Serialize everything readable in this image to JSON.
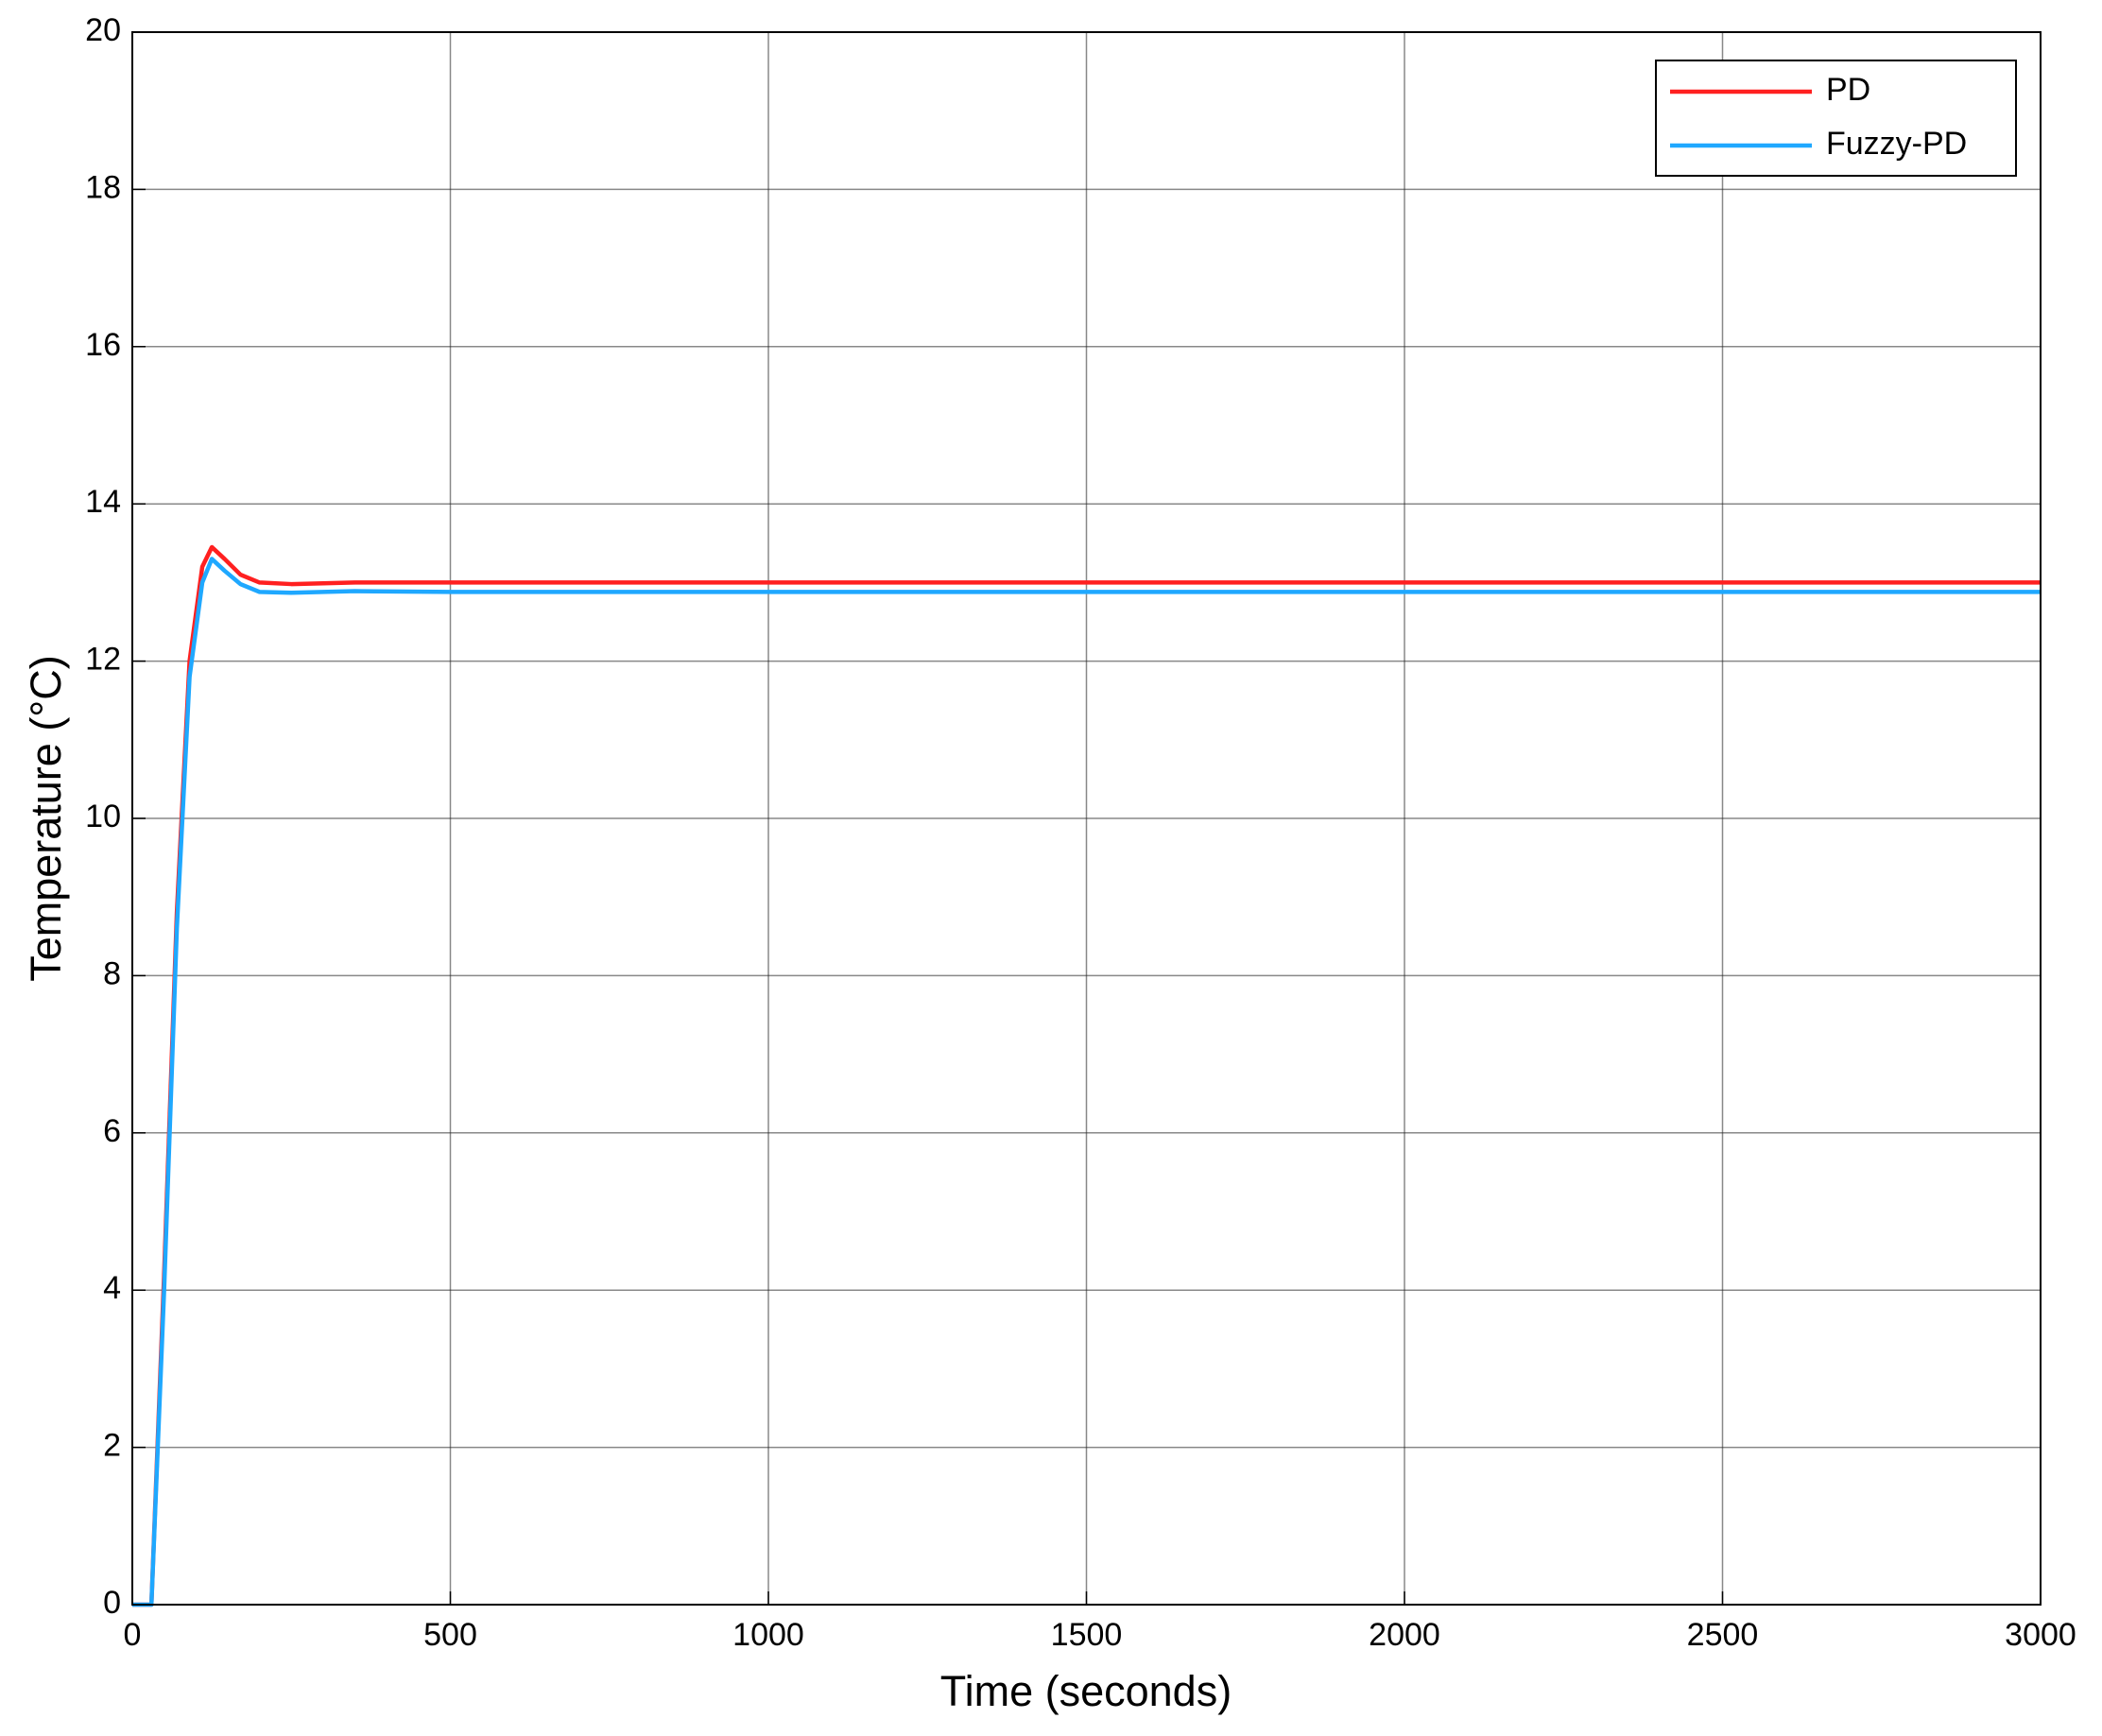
{
  "chart_data": {
    "type": "line",
    "xlabel": "Time (seconds)",
    "ylabel": "Temperature (°C)",
    "x": [
      0,
      30,
      50,
      70,
      90,
      110,
      125,
      145,
      170,
      200,
      250,
      350,
      500,
      1000,
      3000
    ],
    "series": [
      {
        "name": "PD",
        "color": "#ff2020",
        "values": [
          0,
          0,
          4.2,
          8.8,
          12.0,
          13.2,
          13.45,
          13.3,
          13.1,
          13.0,
          12.98,
          13.0,
          13.0,
          13.0,
          13.0
        ]
      },
      {
        "name": "Fuzzy-PD",
        "color": "#1fa8ff",
        "values": [
          0,
          0,
          4.0,
          8.6,
          11.8,
          13.0,
          13.3,
          13.15,
          12.98,
          12.88,
          12.87,
          12.89,
          12.88,
          12.88,
          12.88
        ]
      }
    ],
    "xlim": [
      0,
      3000
    ],
    "xticks": [
      0,
      500,
      1000,
      1500,
      2000,
      2500,
      3000
    ],
    "ylim": [
      0,
      20
    ],
    "yticks": [
      0,
      2,
      4,
      6,
      8,
      10,
      12,
      14,
      16,
      18,
      20
    ],
    "grid": true,
    "legend": "upper right"
  }
}
